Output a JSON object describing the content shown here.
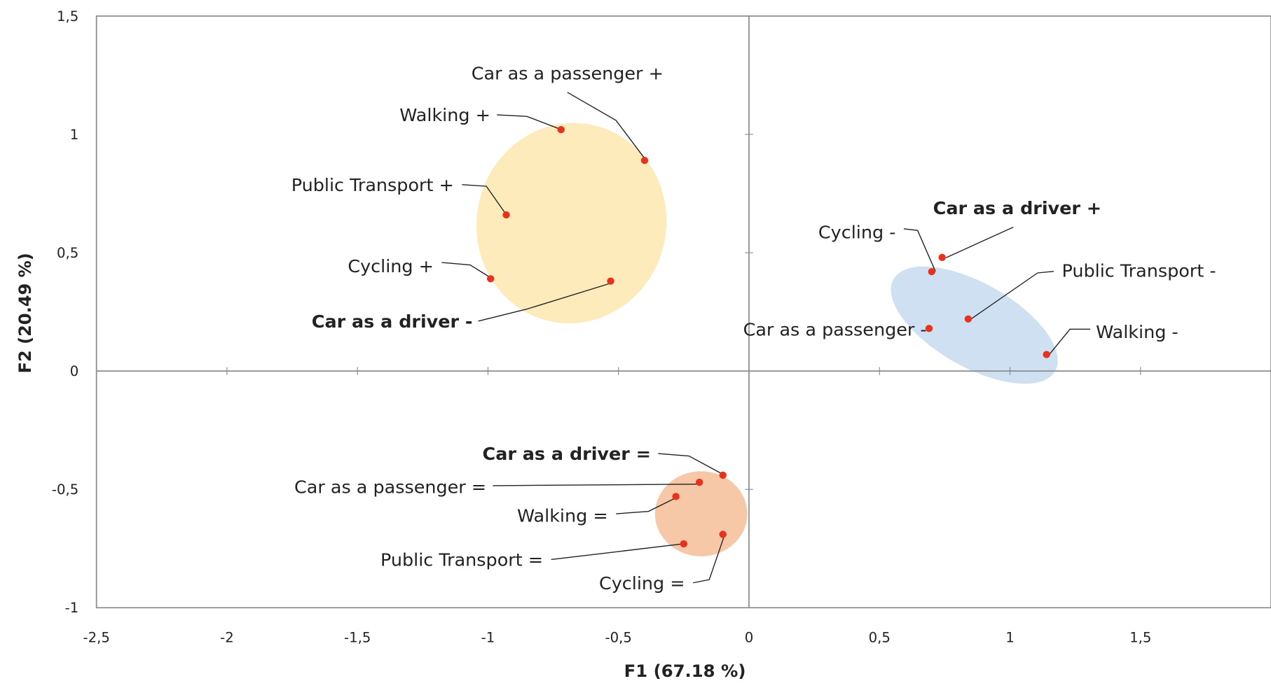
{
  "chart_data": {
    "type": "scatter",
    "xlabel": "F1 (67.18 %)",
    "ylabel": "F2 (20.49 %)",
    "xlim": [
      -2.5,
      2
    ],
    "ylim": [
      -1,
      1.5
    ],
    "xticks": [
      {
        "value": -2.5,
        "label": "-2,5"
      },
      -2,
      {
        "value": -1.5,
        "label": "-1,5"
      },
      -1,
      {
        "value": -0.5,
        "label": "-0,5"
      },
      0,
      {
        "value": 0.5,
        "label": "0,5"
      },
      1,
      {
        "value": 1.5,
        "label": "1,5"
      }
    ],
    "yticks": [
      -1,
      {
        "value": -0.5,
        "label": "-0,5"
      },
      0,
      {
        "value": 0.5,
        "label": "0,5"
      },
      1,
      {
        "value": 1.5,
        "label": "1,5"
      }
    ],
    "grid": false,
    "series": [
      {
        "color": "#e8321e",
        "labels": [
          "Walking +",
          "Car as a passenger +",
          "Public Transport +",
          "Cycling +",
          "Car as a driver -",
          "Cycling -",
          "Car as a driver +",
          "Car as a passenger -",
          "Public Transport -",
          "Walking -",
          "Car as a driver =",
          "Car as a passenger =",
          "Walking =",
          "Public Transport =",
          "Cycling ="
        ],
        "bold": [
          false,
          false,
          false,
          false,
          true,
          false,
          true,
          false,
          false,
          false,
          true,
          false,
          false,
          false,
          false
        ],
        "x": [
          -0.72,
          -0.4,
          -0.93,
          -0.99,
          -0.53,
          0.7,
          0.74,
          0.69,
          0.84,
          1.14,
          -0.1,
          -0.19,
          -0.28,
          -0.25,
          -0.1
        ],
        "y": [
          1.02,
          0.89,
          0.66,
          0.39,
          0.38,
          0.42,
          0.48,
          0.18,
          0.22,
          0.07,
          -0.44,
          -0.47,
          -0.53,
          -0.73,
          -0.69
        ]
      }
    ]
  }
}
